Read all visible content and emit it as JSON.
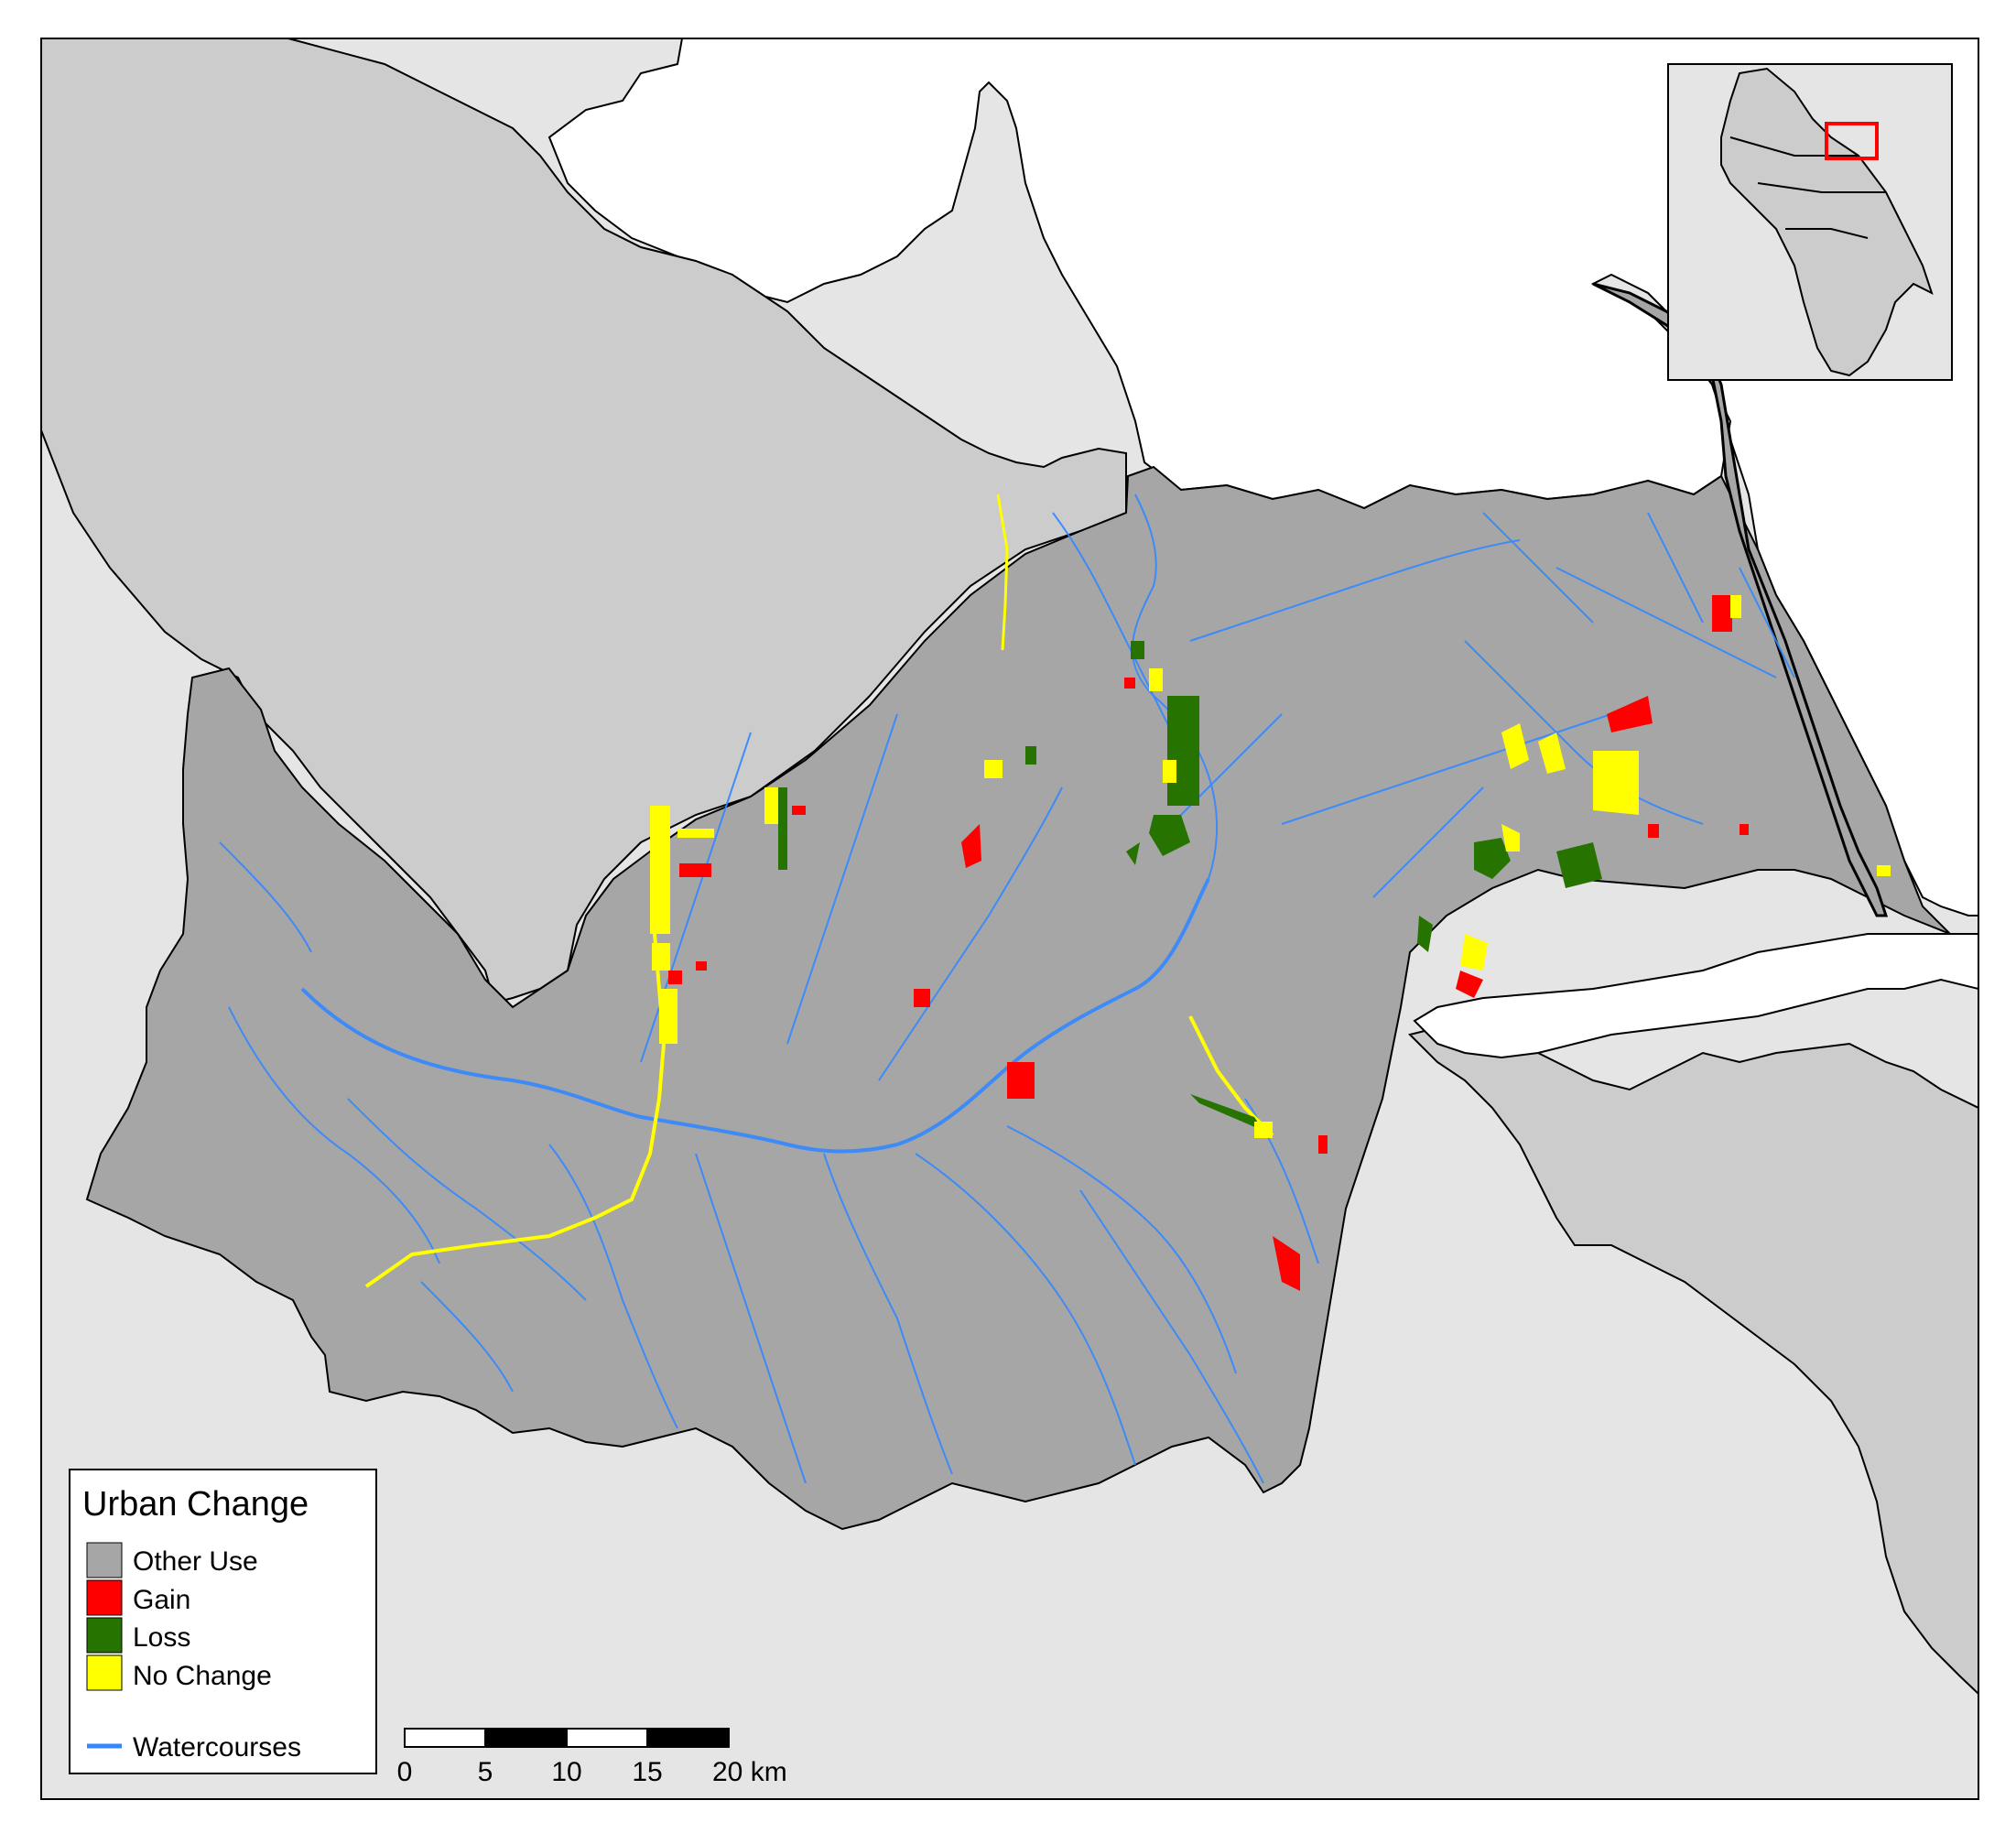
{
  "legend": {
    "title": "Urban Change",
    "items": [
      {
        "label": "Other Use",
        "color": "#a6a6a6"
      },
      {
        "label": "Gain",
        "color": "#ff0000"
      },
      {
        "label": "Loss",
        "color": "#267300"
      },
      {
        "label": "No Change",
        "color": "#ffff00"
      }
    ],
    "watercourses": {
      "label": "Watercourses",
      "color": "#3388ff"
    }
  },
  "scalebar": {
    "ticks": [
      "0",
      "5",
      "10",
      "15",
      "20 km"
    ]
  },
  "colors": {
    "background": "#e5e5e5",
    "neighbor": "#cccccc",
    "catchment": "#a6a6a6",
    "sea": "#ffffff",
    "inset_highlight": "#ff0000"
  }
}
